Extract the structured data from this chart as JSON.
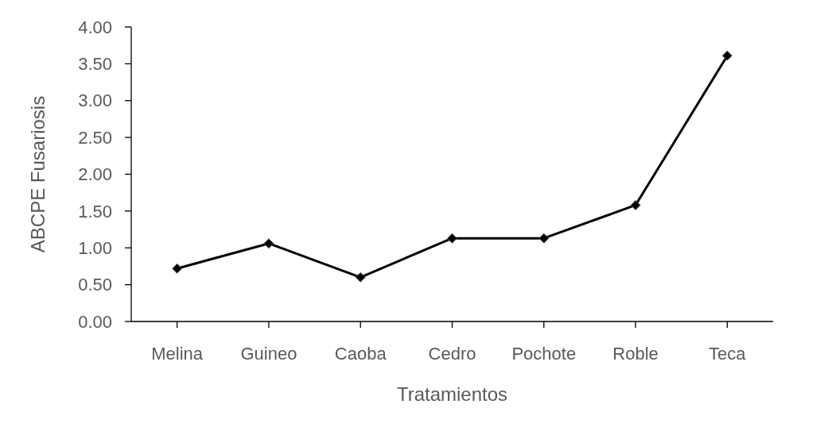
{
  "chart_data": {
    "type": "line",
    "xlabel": "Tratamientos",
    "ylabel": "ABCPE Fusariosis",
    "categories": [
      "Melina",
      "Guineo",
      "Caoba",
      "Cedro",
      "Pochote",
      "Roble",
      "Teca"
    ],
    "series": [
      {
        "color": "#000000",
        "values": [
          0.72,
          1.06,
          0.6,
          1.13,
          1.13,
          1.58,
          3.61
        ]
      }
    ],
    "ylim": [
      0,
      4
    ],
    "yticks": [
      {
        "value": 0,
        "label": "0.00"
      },
      {
        "value": 0.5,
        "label": "0.50"
      },
      {
        "value": 1,
        "label": "1.00"
      },
      {
        "value": 1.5,
        "label": "1.50"
      },
      {
        "value": 2,
        "label": "2.00"
      },
      {
        "value": 2.5,
        "label": "2.50"
      },
      {
        "value": 3,
        "label": "3.00"
      },
      {
        "value": 3.5,
        "label": "3.50"
      },
      {
        "value": 4,
        "label": "4.00"
      }
    ],
    "grid": false,
    "marker": "diamond",
    "line_style": "solid"
  }
}
